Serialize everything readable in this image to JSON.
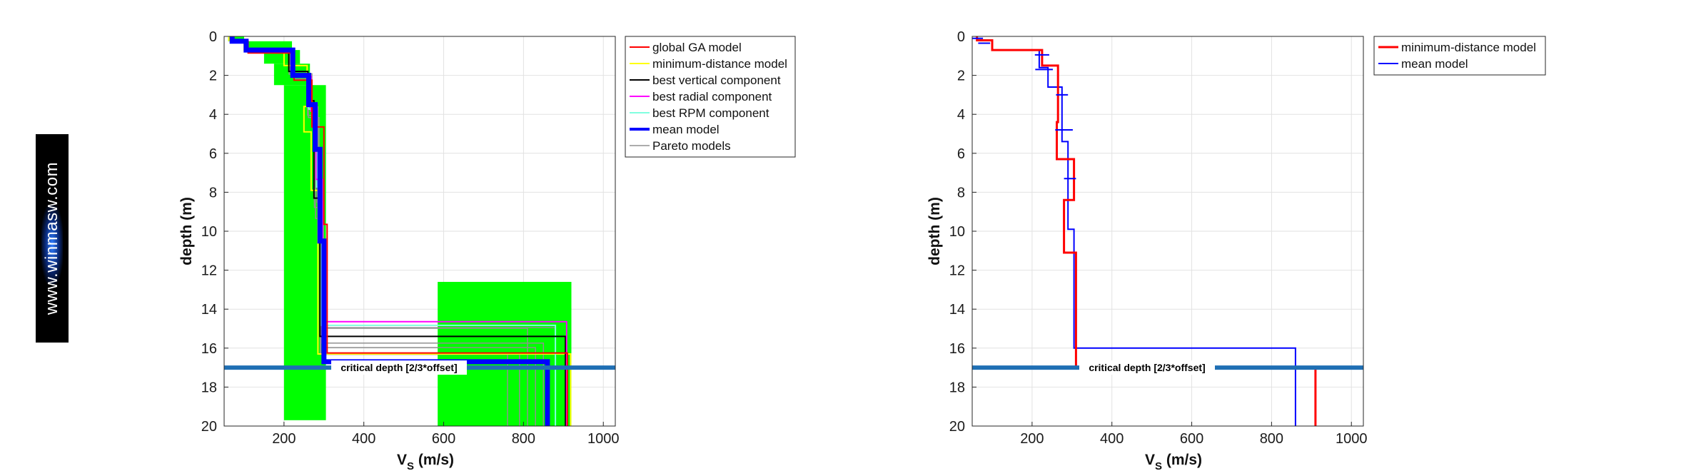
{
  "watermark": "www.winmasw.com",
  "critical_label": "critical depth [2/3*offset]",
  "chart_data": [
    {
      "type": "line",
      "orientation": "depth-profile",
      "xlabel": "V_S (m/s)",
      "ylabel": "depth (m)",
      "xlim": [
        50,
        1030
      ],
      "ylim": [
        20,
        0
      ],
      "xticks": [
        200,
        400,
        600,
        800,
        1000
      ],
      "yticks": [
        0,
        2,
        4,
        6,
        8,
        10,
        12,
        14,
        16,
        18,
        20
      ],
      "grid": true,
      "legend_position": "outside-top-right",
      "critical_depth": 17.0,
      "search_space_color": "#00ff00",
      "search_space": [
        {
          "vmin": 60,
          "vmax": 100,
          "dmin": 0.0,
          "dmax": 0.25
        },
        {
          "vmin": 110,
          "vmax": 220,
          "dmin": 0.25,
          "dmax": 0.7
        },
        {
          "vmin": 150,
          "vmax": 240,
          "dmin": 0.7,
          "dmax": 1.4
        },
        {
          "vmin": 175,
          "vmax": 265,
          "dmin": 1.4,
          "dmax": 2.5
        },
        {
          "vmin": 200,
          "vmax": 305,
          "dmin": 2.5,
          "dmax": 19.7
        },
        {
          "vmin": 585,
          "vmax": 920,
          "dmin": 12.6,
          "dmax": 20.0
        }
      ],
      "series": [
        {
          "name": "global GA model",
          "color": "#ff0000",
          "width": 2,
          "legend": true,
          "v": [
            72,
            110,
            225,
            270,
            300,
            308,
            910
          ],
          "h": [
            0.25,
            0.6,
            1.4,
            2.4,
            5.0,
            6.6
          ]
        },
        {
          "name": "minimum-distance model",
          "color": "#ffff00",
          "width": 2,
          "legend": true,
          "v": [
            62,
            100,
            200,
            258,
            250,
            268,
            285,
            918
          ],
          "h": [
            0.2,
            0.5,
            0.8,
            2.1,
            1.3,
            3.0,
            8.4
          ]
        },
        {
          "name": "best vertical component",
          "color": "#000000",
          "width": 2,
          "legend": true,
          "v": [
            68,
            105,
            212,
            260,
            275,
            290,
            905
          ],
          "h": [
            0.22,
            0.48,
            1.1,
            1.5,
            5.0,
            7.1
          ]
        },
        {
          "name": "best radial component",
          "color": "#ff00ff",
          "width": 2,
          "legend": true,
          "v": [
            70,
            108,
            220,
            268,
            280,
            296,
            908
          ],
          "h": [
            0.24,
            0.5,
            1.3,
            1.8,
            3.5,
            7.3
          ]
        },
        {
          "name": "best RPM component",
          "color": "#80ffe0",
          "width": 2,
          "legend": true,
          "v": [
            69,
            106,
            218,
            262,
            282,
            294,
            880
          ],
          "h": [
            0.23,
            0.5,
            1.3,
            1.7,
            4.0,
            7.1
          ]
        },
        {
          "name": "mean model",
          "color": "#0000ff",
          "width": 7,
          "legend": true,
          "v": [
            70,
            105,
            222,
            262,
            278,
            290,
            300,
            860
          ],
          "h": [
            0.25,
            0.45,
            1.3,
            1.5,
            2.3,
            4.7,
            6.2
          ]
        },
        {
          "name": "Pareto models",
          "color": "#909090",
          "width": 1.5,
          "legend": true,
          "v": [
            67,
            104,
            215,
            258,
            285,
            292,
            790
          ],
          "h": [
            0.22,
            0.5,
            1.1,
            1.8,
            4.8,
            7.9
          ]
        },
        {
          "color": "#909090",
          "width": 1.5,
          "legend": false,
          "v": [
            71,
            110,
            224,
            265,
            276,
            298,
            810
          ],
          "h": [
            0.26,
            0.42,
            1.5,
            1.4,
            5.2,
            6.2
          ]
        },
        {
          "color": "#909090",
          "width": 1.5,
          "legend": false,
          "v": [
            74,
            102,
            219,
            270,
            283,
            291,
            760
          ],
          "h": [
            0.24,
            0.48,
            1.2,
            2.4,
            4.2,
            7.8
          ]
        },
        {
          "color": "#909090",
          "width": 1.5,
          "legend": false,
          "v": [
            66,
            107,
            221,
            261,
            288,
            296,
            830
          ],
          "h": [
            0.2,
            0.52,
            1.35,
            2.1,
            4.9,
            6.9
          ]
        },
        {
          "color": "#909090",
          "width": 1.5,
          "legend": false,
          "v": [
            70,
            109,
            213,
            266,
            279,
            293,
            850
          ],
          "h": [
            0.23,
            0.46,
            1.25,
            1.9,
            5.5,
            6.4
          ]
        },
        {
          "color": "#909090",
          "width": 1.5,
          "legend": false,
          "v": [
            72,
            103,
            226,
            259,
            284,
            299,
            880
          ],
          "h": [
            0.25,
            0.5,
            1.3,
            2.0,
            4.4,
            6.5
          ]
        }
      ],
      "draw_order": [
        11,
        10,
        9,
        8,
        7,
        6,
        1,
        4,
        2,
        3,
        0,
        5
      ]
    },
    {
      "type": "line",
      "orientation": "depth-profile",
      "xlabel": "V_S (m/s)",
      "ylabel": "depth (m)",
      "xlim": [
        50,
        1030
      ],
      "ylim": [
        20,
        0
      ],
      "xticks": [
        200,
        400,
        600,
        800,
        1000
      ],
      "yticks": [
        0,
        2,
        4,
        6,
        8,
        10,
        12,
        14,
        16,
        18,
        20
      ],
      "grid": true,
      "legend_position": "outside-top-right",
      "critical_depth": 17.0,
      "series": [
        {
          "name": "minimum-distance model",
          "color": "#ff0000",
          "width": 3,
          "legend": true,
          "v": [
            62,
            100,
            225,
            265,
            262,
            305,
            280,
            310,
            910
          ],
          "h": [
            0.2,
            0.5,
            0.8,
            2.9,
            1.9,
            2.1,
            2.7,
            5.9
          ]
        },
        {
          "name": "mean model",
          "color": "#0000ff",
          "width": 2,
          "legend": true,
          "v": [
            62,
            100,
            218,
            240,
            275,
            290,
            305,
            860
          ],
          "h": [
            0.2,
            0.5,
            0.9,
            1.0,
            2.8,
            4.5,
            6.1
          ]
        }
      ],
      "error_bars": {
        "color": "#0000ff",
        "points": [
          {
            "v": 62,
            "d": 0.1,
            "sd": 15
          },
          {
            "v": 80,
            "d": 0.35,
            "sd": 15
          },
          {
            "v": 225,
            "d": 0.95,
            "sd": 18
          },
          {
            "v": 230,
            "d": 1.7,
            "sd": 22
          },
          {
            "v": 275,
            "d": 3.0,
            "sd": 15
          },
          {
            "v": 280,
            "d": 4.8,
            "sd": 22
          },
          {
            "v": 295,
            "d": 7.3,
            "sd": 15
          }
        ]
      },
      "draw_order": [
        1,
        0
      ]
    }
  ]
}
